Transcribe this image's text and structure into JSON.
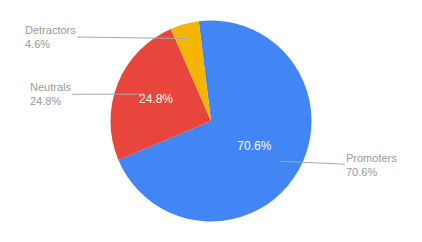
{
  "chart_data": {
    "type": "pie",
    "categories": [
      "Promoters",
      "Neutrals",
      "Detractors"
    ],
    "values": [
      70.6,
      24.8,
      4.6
    ],
    "value_labels": [
      "70.6%",
      "24.8%",
      null
    ],
    "colors": [
      "#4285F4",
      "#E8453C",
      "#F4B400"
    ],
    "annotations": [
      "Promoters\n70.6%",
      "Neutrals\n24.8%",
      "Detractors\n4.6%"
    ]
  }
}
